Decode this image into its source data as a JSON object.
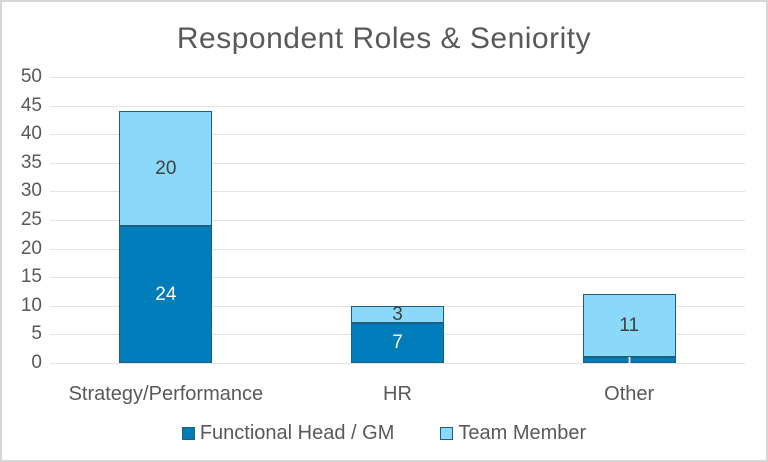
{
  "window": {
    "background": "#FFFFFF",
    "frame_border_color": "#D5D5D5"
  },
  "chart_data": {
    "type": "bar",
    "stacked": true,
    "title": "Respondent Roles & Seniority",
    "categories": [
      "Strategy/Performance",
      "HR",
      "Other"
    ],
    "series": [
      {
        "name": "Functional Head / GM",
        "values": [
          24,
          7,
          1
        ],
        "color_key": "series_dark",
        "label_color_key": "label_on_dark"
      },
      {
        "name": "Team Member",
        "values": [
          20,
          3,
          11
        ],
        "color_key": "series_light",
        "label_color_key": "label_on_light"
      }
    ],
    "xlabel": "",
    "ylabel": "",
    "ylim": [
      0,
      50
    ],
    "ytick_step": 5,
    "grid": true,
    "legend_position": "bottom"
  },
  "colors": {
    "series_dark": "#007CBA",
    "series_light": "#8BD9FA",
    "segment_outline": "#1E5F7E",
    "label_on_dark": "#FFFFFF",
    "label_on_light": "#404040",
    "axis_text": "#595959",
    "title_text": "#595959",
    "gridline": "#E2E2E2"
  }
}
